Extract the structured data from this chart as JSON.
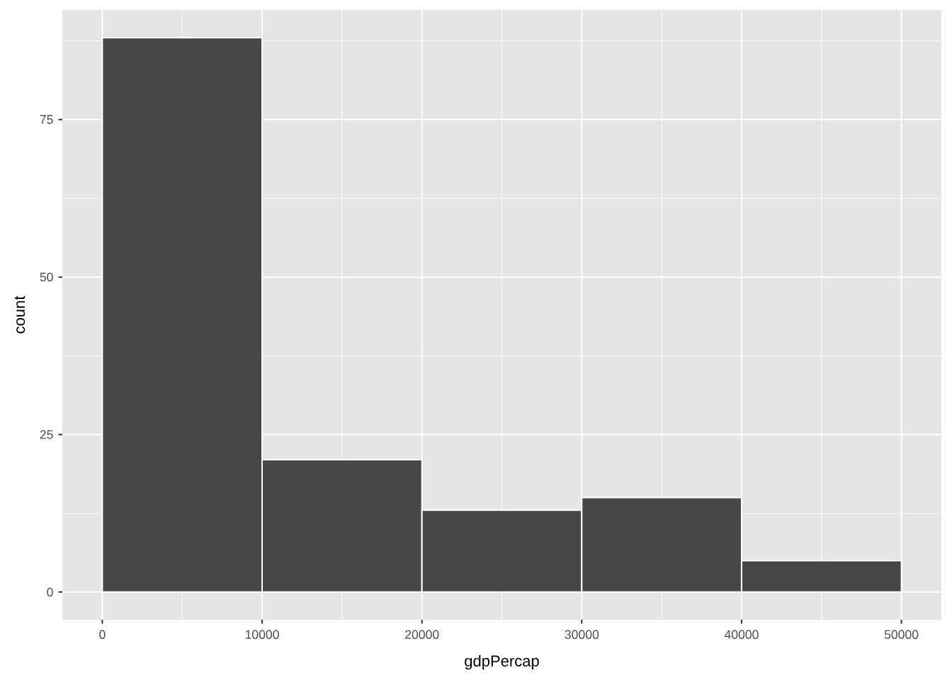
{
  "chart_data": {
    "type": "histogram",
    "xlabel": "gdpPercap",
    "ylabel": "count",
    "bins": [
      0,
      10000,
      20000,
      30000,
      40000,
      50000
    ],
    "values": [
      88,
      21,
      13,
      15,
      5
    ],
    "color": "#474747",
    "xlim": [
      -2500,
      52500
    ],
    "ylim": [
      -4.4,
      92.4
    ],
    "xticks": [
      0,
      10000,
      20000,
      30000,
      40000,
      50000
    ],
    "yticks": [
      0,
      25,
      50,
      75
    ],
    "grid": true
  }
}
